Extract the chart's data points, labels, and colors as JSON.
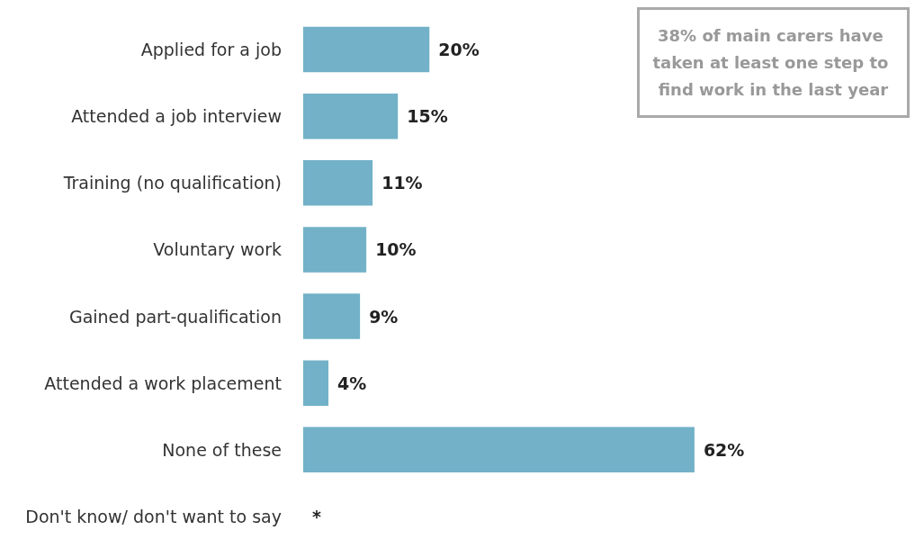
{
  "chart_data": {
    "type": "bar",
    "orientation": "horizontal",
    "categories": [
      "Applied for a job",
      "Attended a job interview",
      "Training (no qualification)",
      "Voluntary work",
      "Gained part-qualification",
      "Attended a work placement",
      "None of these",
      "Don't know/ don't want to say"
    ],
    "values": [
      20,
      15,
      11,
      10,
      9,
      4,
      62,
      null
    ],
    "value_labels": [
      "20%",
      "15%",
      "11%",
      "10%",
      "9%",
      "4%",
      "62%",
      "*"
    ],
    "color": "#72b1c8",
    "annotations": [
      "38% of main carers have taken at least one step to find work in the last year"
    ]
  }
}
